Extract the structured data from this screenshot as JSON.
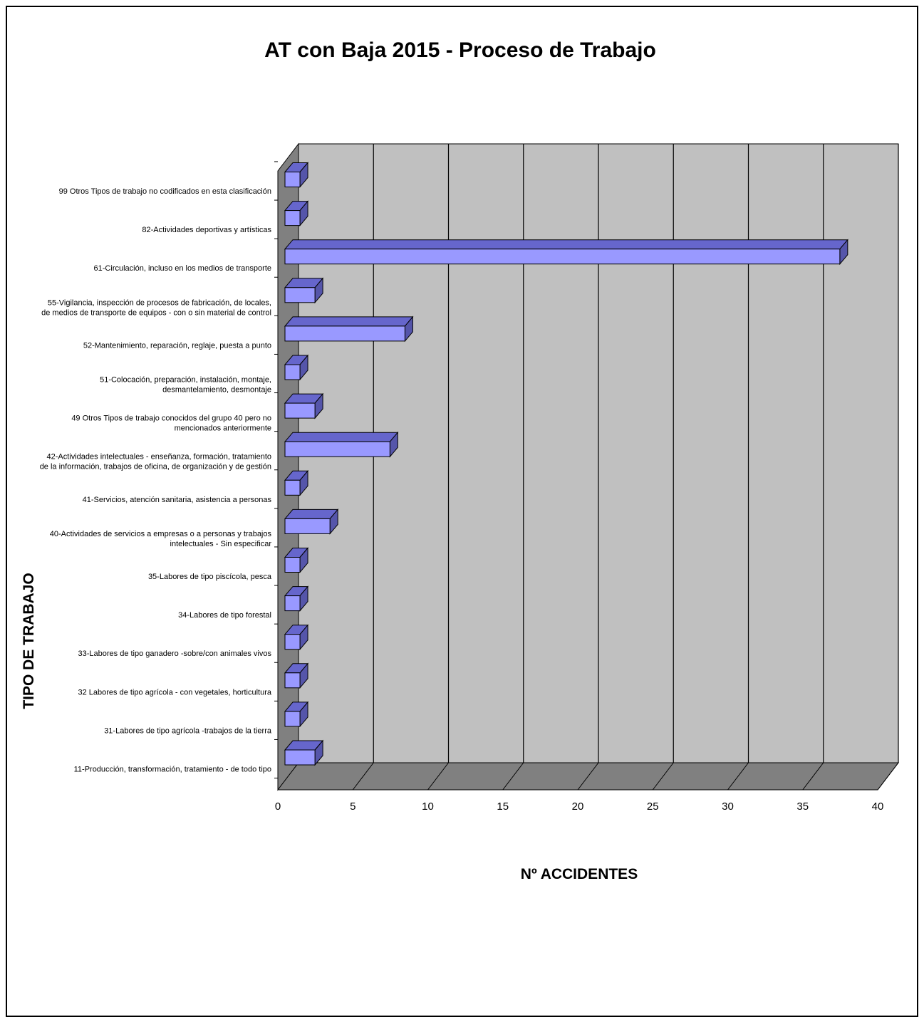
{
  "chart_data": {
    "type": "bar",
    "orientation": "horizontal",
    "style": "3d",
    "title": "AT con Baja 2015 - Proceso de Trabajo",
    "xlabel": "Nº ACCIDENTES",
    "ylabel": "TIPO DE TRABAJO",
    "xlim": [
      0,
      40
    ],
    "xticks": [
      "0",
      "5",
      "10",
      "15",
      "20",
      "25",
      "30",
      "35",
      "40"
    ],
    "grid": true,
    "bar_color": "#9999ff",
    "wall_color": "#c0c0c0",
    "floor_color": "#808080",
    "categories": [
      [
        "99 Otros Tipos de trabajo no codificados en esta clasificación"
      ],
      [
        "82-Actividades deportivas y artísticas"
      ],
      [
        "61-Circulación, incluso en los medios de transporte"
      ],
      [
        "55-Vigilancia, inspección de procesos de fabricación, de locales,",
        "de medios de transporte de equipos - con o sin material de control"
      ],
      [
        "52-Mantenimiento, reparación, reglaje, puesta a punto"
      ],
      [
        "51-Colocación, preparación, instalación, montaje,",
        "desmantelamiento, desmontaje"
      ],
      [
        "49 Otros Tipos de trabajo conocidos del grupo 40 pero no",
        "mencionados anteriormente"
      ],
      [
        "42-Actividades intelectuales - enseñanza, formación, tratamiento",
        "de la información, trabajos de oficina, de organización y de gestión"
      ],
      [
        "41-Servicios, atención sanitaria, asistencia a personas"
      ],
      [
        "40-Actividades de servicios a empresas o a personas y trabajos",
        "intelectuales - Sin especificar"
      ],
      [
        "35-Labores de tipo piscícola, pesca"
      ],
      [
        "34-Labores de tipo forestal"
      ],
      [
        "33-Labores de tipo ganadero -sobre/con animales vivos"
      ],
      [
        "32 Labores de tipo agrícola - con vegetales, horticultura"
      ],
      [
        "31-Labores de tipo agrícola -trabajos de la tierra"
      ],
      [
        "11-Producción, transformación, tratamiento - de todo tipo"
      ]
    ],
    "values": [
      1,
      1,
      37,
      2,
      8,
      1,
      2,
      7,
      1,
      3,
      1,
      1,
      1,
      1,
      1,
      2
    ]
  }
}
